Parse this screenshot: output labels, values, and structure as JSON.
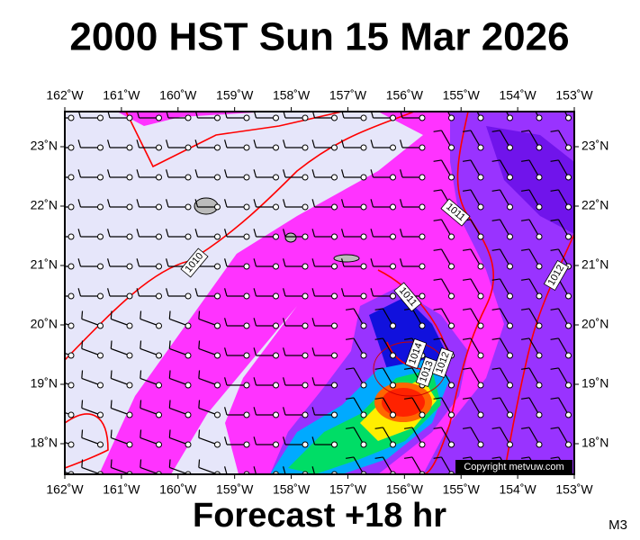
{
  "title": "2000 HST Sun 15 Mar 2026",
  "footer": "Forecast +18 hr",
  "model_code": "M3",
  "copyright": "Copyright metvuw.com",
  "longitude_labels": [
    "162˚W",
    "161˚W",
    "160˚W",
    "159˚W",
    "158˚W",
    "157˚W",
    "156˚W",
    "155˚W",
    "154˚W",
    "153˚W"
  ],
  "latitude_labels": [
    "23˚N",
    "22˚N",
    "21˚N",
    "20˚N",
    "19˚N",
    "18˚N"
  ],
  "isobar_labels": [
    "1010",
    "1011",
    "1011",
    "1012",
    "1014",
    "1013",
    "1012"
  ]
}
